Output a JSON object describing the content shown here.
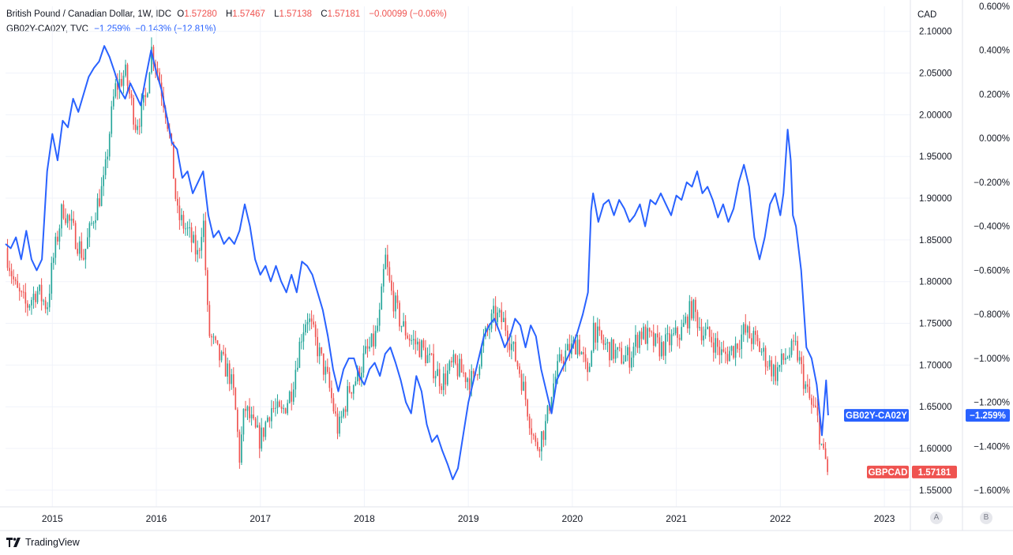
{
  "header": {
    "line1": {
      "symbol": "British Pound / Canadian Dollar, 1W, IDC",
      "o_label": "O",
      "o": "1.57280",
      "h_label": "H",
      "h": "1.57467",
      "l_label": "L",
      "l": "1.57138",
      "c_label": "C",
      "c": "1.57181",
      "change": "−0.00099 (−0.06%)"
    },
    "line2": {
      "symbol": "GB02Y-CA02Y, TVC",
      "values": "−1.259%  −0.143% (−12.81%)"
    }
  },
  "brand": {
    "name": "TradingView"
  },
  "scale_buttons": {
    "left": "A",
    "right": "B"
  },
  "colors": {
    "up": "#26a69a",
    "down": "#ef5350",
    "spread": "#2962ff",
    "grid": "#f0f3fa"
  },
  "chart_data": {
    "type": "line",
    "x_range": [
      2014.55,
      2023.25
    ],
    "x_ticks": [
      "2015",
      "2016",
      "2017",
      "2018",
      "2019",
      "2020",
      "2021",
      "2022",
      "2023"
    ],
    "left_axis": {
      "unit": "CAD",
      "range": [
        1.53,
        2.13
      ],
      "ticks": [
        "2.10000",
        "2.05000",
        "2.00000",
        "1.95000",
        "1.90000",
        "1.85000",
        "1.80000",
        "1.75000",
        "1.70000",
        "1.65000",
        "1.60000",
        "1.55000"
      ]
    },
    "right_axis": {
      "range": [
        -1.675,
        0.6
      ],
      "ticks": [
        "0.600%",
        "0.400%",
        "0.200%",
        "0.000%",
        "−0.200%",
        "−0.400%",
        "−0.600%",
        "−0.800%",
        "−1.000%",
        "−1.200%",
        "−1.400%",
        "−1.600%"
      ]
    },
    "series": [
      {
        "name": "GBPCAD",
        "type": "candlestick",
        "axis": "left",
        "last_value": "1.57181",
        "path": [
          [
            2014.55,
            1.84
          ],
          [
            2014.65,
            1.79
          ],
          [
            2014.75,
            1.77
          ],
          [
            2014.85,
            1.79
          ],
          [
            2014.95,
            1.77
          ],
          [
            2015.0,
            1.82
          ],
          [
            2015.1,
            1.89
          ],
          [
            2015.2,
            1.86
          ],
          [
            2015.3,
            1.83
          ],
          [
            2015.4,
            1.88
          ],
          [
            2015.5,
            1.92
          ],
          [
            2015.55,
            1.98
          ],
          [
            2015.6,
            2.03
          ],
          [
            2015.7,
            2.05
          ],
          [
            2015.75,
            2.02
          ],
          [
            2015.8,
            1.99
          ],
          [
            2015.85,
            2.0
          ],
          [
            2015.9,
            2.02
          ],
          [
            2015.95,
            2.08
          ],
          [
            2016.0,
            2.06
          ],
          [
            2016.05,
            2.03
          ],
          [
            2016.1,
            2.0
          ],
          [
            2016.15,
            1.95
          ],
          [
            2016.2,
            1.88
          ],
          [
            2016.3,
            1.86
          ],
          [
            2016.4,
            1.83
          ],
          [
            2016.45,
            1.88
          ],
          [
            2016.5,
            1.74
          ],
          [
            2016.6,
            1.71
          ],
          [
            2016.7,
            1.69
          ],
          [
            2016.75,
            1.66
          ],
          [
            2016.8,
            1.59
          ],
          [
            2016.85,
            1.65
          ],
          [
            2016.95,
            1.62
          ],
          [
            2017.0,
            1.61
          ],
          [
            2017.1,
            1.65
          ],
          [
            2017.2,
            1.64
          ],
          [
            2017.3,
            1.67
          ],
          [
            2017.4,
            1.74
          ],
          [
            2017.45,
            1.76
          ],
          [
            2017.55,
            1.72
          ],
          [
            2017.65,
            1.68
          ],
          [
            2017.75,
            1.62
          ],
          [
            2017.85,
            1.67
          ],
          [
            2017.95,
            1.69
          ],
          [
            2018.0,
            1.71
          ],
          [
            2018.1,
            1.73
          ],
          [
            2018.15,
            1.76
          ],
          [
            2018.2,
            1.83
          ],
          [
            2018.25,
            1.79
          ],
          [
            2018.35,
            1.75
          ],
          [
            2018.45,
            1.73
          ],
          [
            2018.55,
            1.72
          ],
          [
            2018.65,
            1.7
          ],
          [
            2018.75,
            1.68
          ],
          [
            2018.85,
            1.7
          ],
          [
            2018.95,
            1.69
          ],
          [
            2019.05,
            1.68
          ],
          [
            2019.15,
            1.73
          ],
          [
            2019.25,
            1.76
          ],
          [
            2019.35,
            1.75
          ],
          [
            2019.4,
            1.73
          ],
          [
            2019.5,
            1.69
          ],
          [
            2019.6,
            1.63
          ],
          [
            2019.65,
            1.6
          ],
          [
            2019.75,
            1.63
          ],
          [
            2019.8,
            1.67
          ],
          [
            2019.9,
            1.71
          ],
          [
            2020.0,
            1.72
          ],
          [
            2020.05,
            1.73
          ],
          [
            2020.1,
            1.71
          ],
          [
            2020.15,
            1.68
          ],
          [
            2020.2,
            1.75
          ],
          [
            2020.25,
            1.73
          ],
          [
            2020.35,
            1.72
          ],
          [
            2020.45,
            1.71
          ],
          [
            2020.55,
            1.71
          ],
          [
            2020.65,
            1.74
          ],
          [
            2020.75,
            1.73
          ],
          [
            2020.85,
            1.72
          ],
          [
            2020.95,
            1.73
          ],
          [
            2021.05,
            1.74
          ],
          [
            2021.15,
            1.77
          ],
          [
            2021.25,
            1.74
          ],
          [
            2021.35,
            1.73
          ],
          [
            2021.45,
            1.71
          ],
          [
            2021.55,
            1.72
          ],
          [
            2021.65,
            1.74
          ],
          [
            2021.75,
            1.73
          ],
          [
            2021.85,
            1.71
          ],
          [
            2021.95,
            1.69
          ],
          [
            2022.05,
            1.71
          ],
          [
            2022.15,
            1.72
          ],
          [
            2022.25,
            1.67
          ],
          [
            2022.3,
            1.65
          ],
          [
            2022.35,
            1.64
          ],
          [
            2022.4,
            1.6
          ],
          [
            2022.43,
            1.58
          ],
          [
            2022.45,
            1.6
          ],
          [
            2022.46,
            1.5718
          ]
        ]
      },
      {
        "name": "GB02Y-CA02Y",
        "type": "line",
        "axis": "right",
        "last_value": "−1.259%",
        "points": [
          [
            2014.55,
            -0.48
          ],
          [
            2014.6,
            -0.5
          ],
          [
            2014.65,
            -0.45
          ],
          [
            2014.7,
            -0.55
          ],
          [
            2014.75,
            -0.42
          ],
          [
            2014.8,
            -0.55
          ],
          [
            2014.85,
            -0.6
          ],
          [
            2014.9,
            -0.55
          ],
          [
            2014.95,
            -0.15
          ],
          [
            2015.0,
            0.02
          ],
          [
            2015.05,
            -0.1
          ],
          [
            2015.1,
            0.08
          ],
          [
            2015.15,
            0.05
          ],
          [
            2015.2,
            0.18
          ],
          [
            2015.25,
            0.12
          ],
          [
            2015.3,
            0.2
          ],
          [
            2015.35,
            0.28
          ],
          [
            2015.4,
            0.32
          ],
          [
            2015.45,
            0.35
          ],
          [
            2015.5,
            0.42
          ],
          [
            2015.55,
            0.37
          ],
          [
            2015.6,
            0.3
          ],
          [
            2015.65,
            0.22
          ],
          [
            2015.7,
            0.18
          ],
          [
            2015.75,
            0.25
          ],
          [
            2015.8,
            0.2
          ],
          [
            2015.85,
            0.15
          ],
          [
            2015.9,
            0.28
          ],
          [
            2015.95,
            0.4
          ],
          [
            2016.0,
            0.3
          ],
          [
            2016.05,
            0.22
          ],
          [
            2016.1,
            0.1
          ],
          [
            2016.15,
            -0.02
          ],
          [
            2016.2,
            -0.05
          ],
          [
            2016.25,
            -0.18
          ],
          [
            2016.3,
            -0.15
          ],
          [
            2016.35,
            -0.25
          ],
          [
            2016.4,
            -0.2
          ],
          [
            2016.45,
            -0.15
          ],
          [
            2016.5,
            -0.35
          ],
          [
            2016.55,
            -0.45
          ],
          [
            2016.6,
            -0.42
          ],
          [
            2016.65,
            -0.48
          ],
          [
            2016.7,
            -0.45
          ],
          [
            2016.75,
            -0.48
          ],
          [
            2016.8,
            -0.42
          ],
          [
            2016.85,
            -0.3
          ],
          [
            2016.9,
            -0.4
          ],
          [
            2016.95,
            -0.55
          ],
          [
            2017.0,
            -0.62
          ],
          [
            2017.05,
            -0.58
          ],
          [
            2017.1,
            -0.65
          ],
          [
            2017.15,
            -0.58
          ],
          [
            2017.2,
            -0.65
          ],
          [
            2017.25,
            -0.7
          ],
          [
            2017.3,
            -0.62
          ],
          [
            2017.35,
            -0.7
          ],
          [
            2017.4,
            -0.56
          ],
          [
            2017.45,
            -0.58
          ],
          [
            2017.5,
            -0.62
          ],
          [
            2017.55,
            -0.7
          ],
          [
            2017.6,
            -0.78
          ],
          [
            2017.65,
            -0.9
          ],
          [
            2017.7,
            -1.05
          ],
          [
            2017.75,
            -1.15
          ],
          [
            2017.8,
            -1.05
          ],
          [
            2017.85,
            -1.0
          ],
          [
            2017.9,
            -1.0
          ],
          [
            2017.95,
            -1.08
          ],
          [
            2018.0,
            -1.12
          ],
          [
            2018.05,
            -1.05
          ],
          [
            2018.1,
            -1.02
          ],
          [
            2018.15,
            -1.08
          ],
          [
            2018.2,
            -0.98
          ],
          [
            2018.25,
            -0.95
          ],
          [
            2018.3,
            -1.02
          ],
          [
            2018.35,
            -1.1
          ],
          [
            2018.4,
            -1.2
          ],
          [
            2018.45,
            -1.25
          ],
          [
            2018.5,
            -1.08
          ],
          [
            2018.55,
            -1.15
          ],
          [
            2018.6,
            -1.3
          ],
          [
            2018.65,
            -1.38
          ],
          [
            2018.7,
            -1.35
          ],
          [
            2018.75,
            -1.42
          ],
          [
            2018.8,
            -1.48
          ],
          [
            2018.85,
            -1.55
          ],
          [
            2018.9,
            -1.5
          ],
          [
            2018.95,
            -1.35
          ],
          [
            2019.0,
            -1.2
          ],
          [
            2019.05,
            -1.1
          ],
          [
            2019.1,
            -1.0
          ],
          [
            2019.15,
            -0.9
          ],
          [
            2019.2,
            -0.85
          ],
          [
            2019.25,
            -0.82
          ],
          [
            2019.3,
            -0.88
          ],
          [
            2019.35,
            -0.95
          ],
          [
            2019.4,
            -0.9
          ],
          [
            2019.45,
            -0.82
          ],
          [
            2019.5,
            -0.85
          ],
          [
            2019.55,
            -0.95
          ],
          [
            2019.6,
            -0.85
          ],
          [
            2019.65,
            -0.9
          ],
          [
            2019.7,
            -1.05
          ],
          [
            2019.75,
            -1.15
          ],
          [
            2019.8,
            -1.25
          ],
          [
            2019.85,
            -1.1
          ],
          [
            2019.9,
            -1.05
          ],
          [
            2019.95,
            -1.0
          ],
          [
            2020.0,
            -0.95
          ],
          [
            2020.05,
            -0.88
          ],
          [
            2020.1,
            -0.8
          ],
          [
            2020.15,
            -0.7
          ],
          [
            2020.18,
            -0.33
          ],
          [
            2020.2,
            -0.25
          ],
          [
            2020.25,
            -0.38
          ],
          [
            2020.3,
            -0.3
          ],
          [
            2020.35,
            -0.28
          ],
          [
            2020.4,
            -0.35
          ],
          [
            2020.45,
            -0.28
          ],
          [
            2020.5,
            -0.32
          ],
          [
            2020.55,
            -0.38
          ],
          [
            2020.6,
            -0.35
          ],
          [
            2020.65,
            -0.3
          ],
          [
            2020.7,
            -0.4
          ],
          [
            2020.75,
            -0.28
          ],
          [
            2020.8,
            -0.3
          ],
          [
            2020.85,
            -0.25
          ],
          [
            2020.9,
            -0.3
          ],
          [
            2020.95,
            -0.35
          ],
          [
            2021.0,
            -0.26
          ],
          [
            2021.05,
            -0.28
          ],
          [
            2021.1,
            -0.2
          ],
          [
            2021.15,
            -0.22
          ],
          [
            2021.2,
            -0.15
          ],
          [
            2021.25,
            -0.25
          ],
          [
            2021.3,
            -0.22
          ],
          [
            2021.35,
            -0.28
          ],
          [
            2021.4,
            -0.36
          ],
          [
            2021.45,
            -0.3
          ],
          [
            2021.5,
            -0.38
          ],
          [
            2021.55,
            -0.32
          ],
          [
            2021.6,
            -0.2
          ],
          [
            2021.65,
            -0.12
          ],
          [
            2021.7,
            -0.22
          ],
          [
            2021.75,
            -0.45
          ],
          [
            2021.8,
            -0.55
          ],
          [
            2021.85,
            -0.45
          ],
          [
            2021.9,
            -0.3
          ],
          [
            2021.95,
            -0.25
          ],
          [
            2022.0,
            -0.35
          ],
          [
            2022.03,
            -0.25
          ],
          [
            2022.07,
            0.04
          ],
          [
            2022.1,
            -0.1
          ],
          [
            2022.12,
            -0.35
          ],
          [
            2022.15,
            -0.4
          ],
          [
            2022.2,
            -0.6
          ],
          [
            2022.25,
            -0.95
          ],
          [
            2022.3,
            -1.0
          ],
          [
            2022.35,
            -1.12
          ],
          [
            2022.4,
            -1.35
          ],
          [
            2022.42,
            -1.22
          ],
          [
            2022.44,
            -1.1
          ],
          [
            2022.46,
            -1.259
          ]
        ]
      }
    ]
  }
}
